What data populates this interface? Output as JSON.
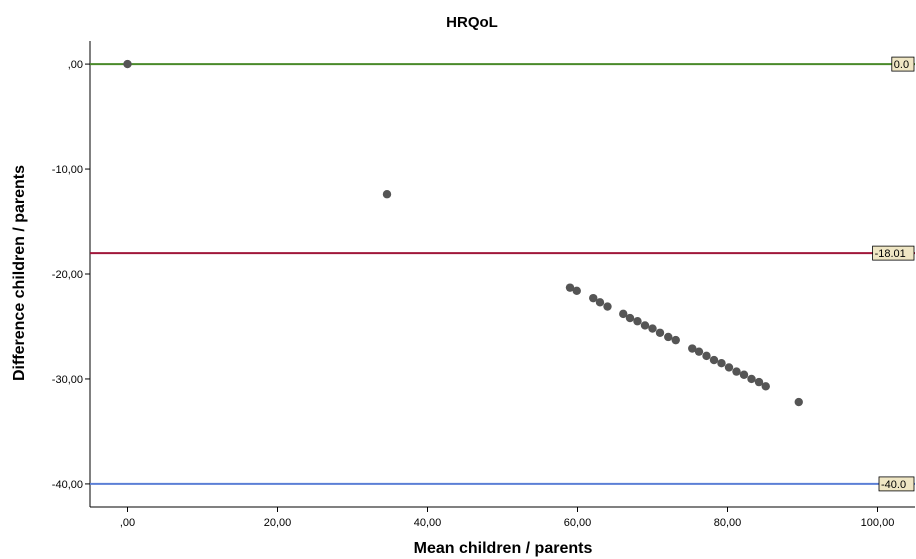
{
  "chart_data": {
    "type": "scatter",
    "title": "HRQoL",
    "xlabel": "Mean children / parents",
    "ylabel": "Difference children / parents",
    "xlim": [
      -5,
      105
    ],
    "ylim": [
      -42.2,
      2.2
    ],
    "x_ticks": [
      {
        "value": 0,
        "label": ",00"
      },
      {
        "value": 20,
        "label": "20,00"
      },
      {
        "value": 40,
        "label": "40,00"
      },
      {
        "value": 60,
        "label": "60,00"
      },
      {
        "value": 80,
        "label": "80,00"
      },
      {
        "value": 100,
        "label": "100,00"
      }
    ],
    "y_ticks": [
      {
        "value": 0,
        "label": ",00"
      },
      {
        "value": -10,
        "label": "-10,00"
      },
      {
        "value": -20,
        "label": "-20,00"
      },
      {
        "value": -30,
        "label": "-30,00"
      },
      {
        "value": -40,
        "label": "-40,00"
      }
    ],
    "reference_lines": [
      {
        "value": 0,
        "label": "0.0",
        "color": "#4a8a2a"
      },
      {
        "value": -18.01,
        "label": "-18.01",
        "color": "#a0163a"
      },
      {
        "value": -40,
        "label": "-40.0",
        "color": "#5b7fd6"
      }
    ],
    "points": [
      {
        "x": 0,
        "y": 0
      },
      {
        "x": 34.6,
        "y": -12.4
      },
      {
        "x": 59.0,
        "y": -21.3
      },
      {
        "x": 59.9,
        "y": -21.6
      },
      {
        "x": 62.1,
        "y": -22.3
      },
      {
        "x": 63.0,
        "y": -22.7
      },
      {
        "x": 64.0,
        "y": -23.1
      },
      {
        "x": 66.1,
        "y": -23.8
      },
      {
        "x": 67.0,
        "y": -24.2
      },
      {
        "x": 68.0,
        "y": -24.5
      },
      {
        "x": 69.0,
        "y": -24.9
      },
      {
        "x": 70.0,
        "y": -25.2
      },
      {
        "x": 71.0,
        "y": -25.6
      },
      {
        "x": 72.1,
        "y": -26.0
      },
      {
        "x": 73.1,
        "y": -26.3
      },
      {
        "x": 75.3,
        "y": -27.1
      },
      {
        "x": 76.2,
        "y": -27.4
      },
      {
        "x": 77.2,
        "y": -27.8
      },
      {
        "x": 78.2,
        "y": -28.2
      },
      {
        "x": 79.2,
        "y": -28.5
      },
      {
        "x": 80.2,
        "y": -28.9
      },
      {
        "x": 81.2,
        "y": -29.3
      },
      {
        "x": 82.2,
        "y": -29.6
      },
      {
        "x": 83.2,
        "y": -30.0
      },
      {
        "x": 84.2,
        "y": -30.3
      },
      {
        "x": 85.1,
        "y": -30.7
      },
      {
        "x": 89.5,
        "y": -32.2
      }
    ],
    "point_color": "#555555",
    "grid": false
  }
}
